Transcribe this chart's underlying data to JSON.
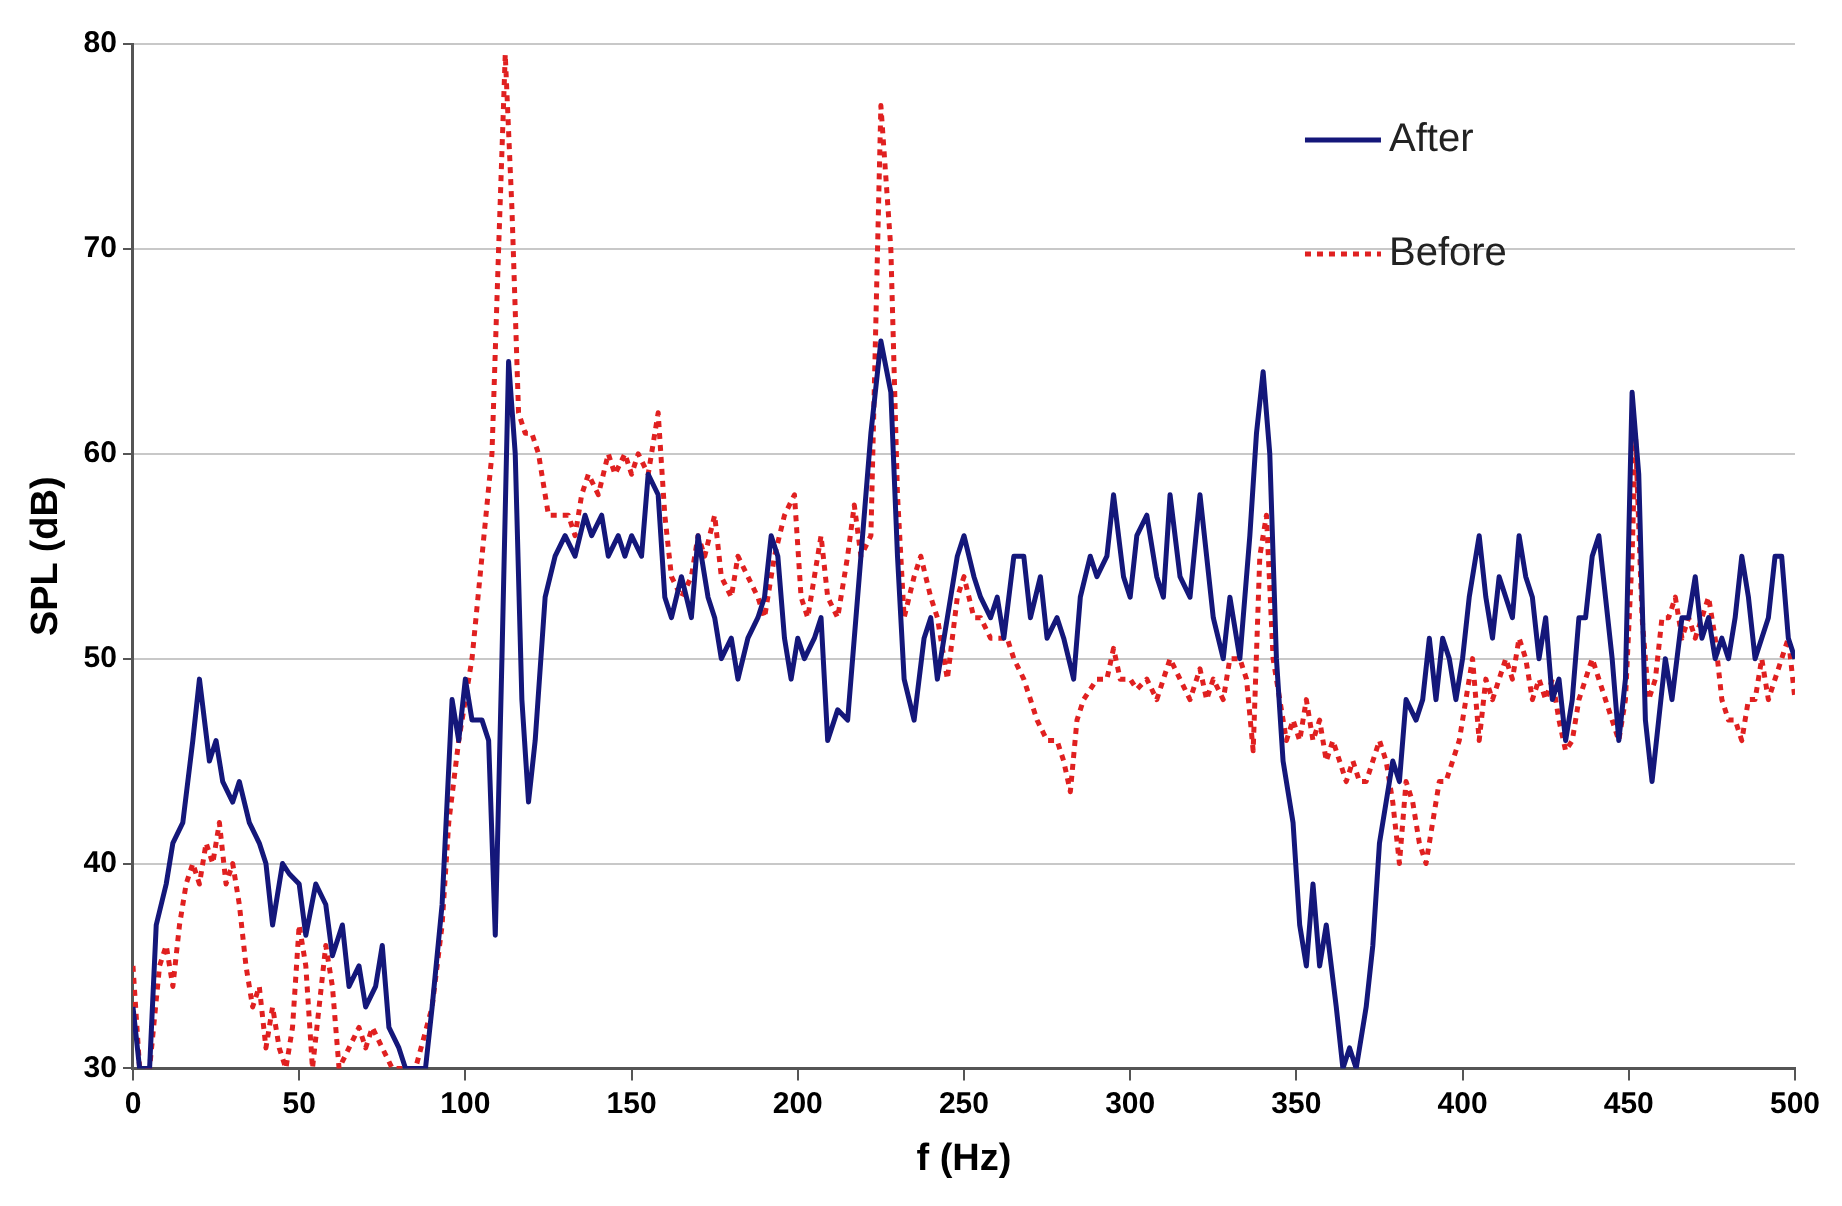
{
  "chart_data": {
    "type": "line",
    "xlabel": "f (Hz)",
    "ylabel": "SPL (dB)",
    "xlim": [
      0,
      500
    ],
    "xticks": [
      0,
      50,
      100,
      150,
      200,
      250,
      300,
      350,
      400,
      450,
      500
    ],
    "ylim": [
      30,
      80
    ],
    "yticks": [
      30,
      40,
      50,
      60,
      70,
      80
    ],
    "grid": "y",
    "legend": "top right",
    "marker": "none",
    "series": [
      {
        "name": "After",
        "color": "#14177a",
        "line_style": "solid",
        "x": [
          0,
          2,
          5,
          7,
          10,
          12,
          15,
          18,
          20,
          23,
          25,
          27,
          30,
          32,
          35,
          38,
          40,
          42,
          45,
          47,
          50,
          52,
          55,
          58,
          60,
          63,
          65,
          68,
          70,
          73,
          75,
          77,
          80,
          82,
          85,
          88,
          90,
          93,
          96,
          98,
          100,
          102,
          105,
          107,
          109,
          111,
          113,
          115,
          117,
          119,
          121,
          124,
          127,
          130,
          133,
          136,
          138,
          141,
          143,
          146,
          148,
          150,
          153,
          155,
          158,
          160,
          162,
          165,
          168,
          170,
          173,
          175,
          177,
          180,
          182,
          185,
          188,
          190,
          192,
          194,
          196,
          198,
          200,
          202,
          205,
          207,
          209,
          212,
          215,
          219,
          222,
          225,
          228,
          230,
          232,
          235,
          238,
          240,
          242,
          245,
          248,
          250,
          253,
          255,
          258,
          260,
          262,
          265,
          268,
          270,
          273,
          275,
          278,
          280,
          283,
          285,
          288,
          290,
          293,
          295,
          298,
          300,
          302,
          305,
          308,
          310,
          312,
          315,
          318,
          321,
          323,
          325,
          328,
          330,
          333,
          336,
          338,
          340,
          342,
          344,
          346,
          349,
          351,
          353,
          355,
          357,
          359,
          362,
          364,
          366,
          368,
          371,
          373,
          375,
          377,
          379,
          381,
          383,
          386,
          388,
          390,
          392,
          394,
          396,
          398,
          400,
          402,
          405,
          407,
          409,
          411,
          413,
          415,
          417,
          419,
          421,
          423,
          425,
          427,
          429,
          431,
          433,
          435,
          437,
          439,
          441,
          443,
          445,
          447,
          449,
          451,
          453,
          455,
          457,
          459,
          461,
          463,
          466,
          468,
          470,
          472,
          474,
          476,
          478,
          480,
          482,
          484,
          486,
          488,
          490,
          492,
          494,
          496,
          498,
          500
        ],
        "values": [
          33,
          30,
          30,
          37,
          39,
          41,
          42,
          46,
          49,
          45,
          46,
          44,
          43,
          44,
          42,
          41,
          40,
          37,
          40,
          39.5,
          39,
          36.5,
          39,
          38,
          35.5,
          37,
          34,
          35,
          33,
          34,
          36,
          32,
          31,
          30,
          30,
          30,
          33,
          38,
          48,
          46,
          49,
          47,
          47,
          46,
          36.5,
          50,
          64.5,
          60,
          48,
          43,
          46,
          53,
          55,
          56,
          55,
          57,
          56,
          57,
          55,
          56,
          55,
          56,
          55,
          59,
          58,
          53,
          52,
          54,
          52,
          56,
          53,
          52,
          50,
          51,
          49,
          51,
          52,
          53,
          56,
          55,
          51,
          49,
          51,
          50,
          51,
          52,
          46,
          47.5,
          47,
          55,
          61,
          65.5,
          63,
          55,
          49,
          47,
          51,
          52,
          49,
          52,
          55,
          56,
          54,
          53,
          52,
          53,
          51,
          55,
          55,
          52,
          54,
          51,
          52,
          51,
          49,
          53,
          55,
          54,
          55,
          58,
          54,
          53,
          56,
          57,
          54,
          53,
          58,
          54,
          53,
          58,
          55,
          52,
          50,
          53,
          50,
          56,
          61,
          64,
          60,
          50,
          45,
          42,
          37,
          35,
          39,
          35,
          37,
          33,
          30,
          31,
          30,
          33,
          36,
          41,
          43,
          45,
          44,
          48,
          47,
          48,
          51,
          48,
          51,
          50,
          48,
          50,
          53,
          56,
          53,
          51,
          54,
          53,
          52,
          56,
          54,
          53,
          50,
          52,
          48,
          49,
          46,
          48,
          52,
          52,
          55,
          56,
          53,
          50,
          46,
          49,
          63,
          59,
          47,
          44,
          47,
          50,
          48,
          52,
          52,
          54,
          51,
          52,
          50,
          51,
          50,
          52,
          55,
          53,
          50,
          51,
          52,
          55,
          55,
          51,
          50
        ]
      },
      {
        "name": "Before",
        "color": "#e02020",
        "line_style": "dotted",
        "x": [
          0,
          2,
          5,
          8,
          10,
          12,
          14,
          16,
          18,
          20,
          22,
          24,
          26,
          28,
          30,
          32,
          34,
          36,
          38,
          40,
          42,
          44,
          46,
          48,
          50,
          52,
          54,
          56,
          58,
          60,
          62,
          65,
          68,
          70,
          72,
          75,
          78,
          80,
          85,
          90,
          93,
          95,
          98,
          100,
          102,
          105,
          108,
          110,
          112,
          114,
          116,
          118,
          120,
          122,
          125,
          128,
          131,
          133,
          135,
          137,
          140,
          143,
          145,
          148,
          150,
          152,
          155,
          158,
          160,
          162,
          165,
          168,
          170,
          172,
          175,
          177,
          180,
          182,
          185,
          188,
          190,
          193,
          196,
          199,
          201,
          203,
          205,
          207,
          209,
          212,
          215,
          217,
          219,
          222,
          225,
          228,
          230,
          232,
          235,
          237,
          240,
          242,
          245,
          248,
          250,
          253,
          255,
          258,
          260,
          263,
          265,
          268,
          270,
          272,
          275,
          278,
          280,
          282,
          284,
          286,
          290,
          293,
          295,
          297,
          300,
          302,
          305,
          308,
          310,
          312,
          315,
          318,
          321,
          323,
          325,
          328,
          330,
          333,
          335,
          337,
          339,
          341,
          343,
          345,
          347,
          349,
          351,
          353,
          355,
          357,
          359,
          361,
          363,
          365,
          367,
          369,
          371,
          373,
          375,
          377,
          379,
          381,
          383,
          385,
          387,
          389,
          391,
          393,
          395,
          397,
          399,
          401,
          403,
          405,
          407,
          409,
          411,
          413,
          415,
          417,
          419,
          421,
          423,
          425,
          427,
          429,
          431,
          433,
          435,
          437,
          439,
          441,
          443,
          445,
          447,
          449,
          451,
          452,
          454,
          456,
          458,
          460,
          462,
          464,
          466,
          468,
          470,
          472,
          474,
          476,
          478,
          480,
          482,
          484,
          486,
          488,
          490,
          492,
          494,
          496,
          498,
          500
        ],
        "values": [
          35,
          30,
          30,
          35,
          36,
          34,
          37,
          39,
          40,
          39,
          41,
          40,
          42,
          39,
          40,
          38,
          35,
          33,
          34,
          31,
          33,
          31,
          30,
          32,
          37,
          35,
          30,
          33,
          36,
          34,
          30,
          31,
          32,
          31,
          32,
          31,
          30,
          30,
          30,
          33,
          37,
          42,
          46,
          48,
          50,
          55,
          60,
          70,
          79.5,
          72,
          62,
          61,
          61,
          60,
          57,
          57,
          57,
          56,
          58,
          59,
          58,
          60,
          59,
          60,
          59,
          60,
          59,
          62,
          57,
          54,
          53,
          54,
          56,
          55,
          57,
          54,
          53,
          55,
          54,
          53,
          52,
          55,
          57,
          58,
          53,
          52,
          54,
          56,
          53,
          52,
          55,
          57.5,
          55,
          56,
          77,
          70,
          58,
          52,
          54,
          55,
          53,
          52,
          49,
          53,
          54,
          52,
          52,
          51,
          51,
          51,
          50,
          49,
          48,
          47,
          46,
          46,
          45,
          43.5,
          47,
          48,
          49,
          49,
          50.5,
          49,
          49,
          48.5,
          49,
          48,
          49,
          50,
          49,
          48,
          49.5,
          48,
          49,
          48,
          50,
          50,
          49,
          45.5,
          55,
          57,
          50,
          48,
          46,
          47,
          46,
          48,
          46,
          47,
          45,
          46,
          45,
          44,
          45,
          44,
          44,
          45,
          46,
          45,
          43,
          40,
          44,
          43,
          41,
          40,
          42,
          44,
          44,
          45,
          46,
          48,
          50,
          46,
          49,
          48,
          49,
          50,
          49,
          51,
          50,
          48,
          49,
          48,
          49,
          47,
          45.5,
          46,
          48,
          49,
          50,
          49,
          48,
          47,
          46,
          48,
          55,
          61,
          52,
          48,
          49,
          52,
          52,
          53,
          51,
          52,
          51,
          52,
          53,
          51,
          48,
          47,
          47,
          46,
          48,
          48,
          50,
          48,
          49,
          50,
          51,
          48
        ]
      }
    ]
  }
}
